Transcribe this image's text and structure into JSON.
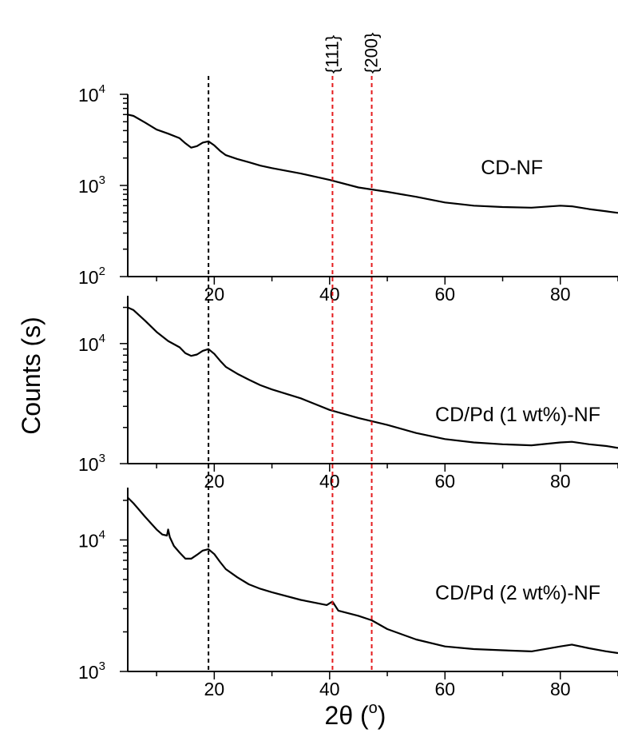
{
  "chart_data": {
    "type": "line",
    "y_axis_title": "Counts (s)",
    "x_axis_title": {
      "base": "2θ (",
      "sup": "o",
      "close": ")"
    },
    "x_range": [
      5,
      90
    ],
    "x_ticks": [
      20,
      40,
      60,
      80
    ],
    "y_scale": "log",
    "reference_lines": [
      {
        "x": 19,
        "color": "#000000",
        "label": ""
      },
      {
        "x": 40.5,
        "color": "#e41a1c",
        "label": "{111}"
      },
      {
        "x": 47.3,
        "color": "#e41a1c",
        "label": "{200}"
      }
    ],
    "panels": [
      {
        "name": "CD-NF",
        "ylim": [
          100,
          10000
        ],
        "y_ticks": [
          {
            "value": 100,
            "base": "10",
            "exp": "2"
          },
          {
            "value": 1000,
            "base": "10",
            "exp": "3"
          },
          {
            "value": 10000,
            "base": "10",
            "exp": "4"
          }
        ],
        "series": [
          {
            "name": "CD-NF",
            "x": [
              5,
              6,
              8,
              10,
              12,
              14,
              15,
              16,
              17,
              18,
              19,
              20,
              21,
              22,
              24,
              26,
              28,
              30,
              35,
              40,
              45,
              50,
              55,
              60,
              65,
              70,
              75,
              80,
              82,
              85,
              88,
              90
            ],
            "y": [
              6000,
              5800,
              4900,
              4100,
              3700,
              3300,
              2900,
              2600,
              2700,
              2950,
              3050,
              2750,
              2400,
              2150,
              1950,
              1800,
              1650,
              1550,
              1350,
              1150,
              950,
              850,
              750,
              650,
              600,
              580,
              570,
              600,
              590,
              550,
              520,
              500
            ]
          }
        ]
      },
      {
        "name": "CD/Pd (1 wt%)-NF",
        "ylim": [
          1000,
          25000
        ],
        "y_ticks": [
          {
            "value": 1000,
            "base": "10",
            "exp": "3"
          },
          {
            "value": 10000,
            "base": "10",
            "exp": "4"
          }
        ],
        "series": [
          {
            "name": "CD/Pd (1 wt%)-NF",
            "x": [
              5,
              6,
              8,
              10,
              12,
              14,
              15,
              16,
              17,
              18,
              19,
              20,
              21,
              22,
              24,
              26,
              28,
              30,
              35,
              40,
              45,
              50,
              55,
              60,
              65,
              70,
              75,
              80,
              82,
              85,
              88,
              90
            ],
            "y": [
              20000,
              19000,
              15500,
              12500,
              10500,
              9300,
              8300,
              7900,
              8100,
              8700,
              9000,
              8200,
              7200,
              6400,
              5600,
              5000,
              4500,
              4150,
              3500,
              2800,
              2400,
              2100,
              1800,
              1600,
              1500,
              1450,
              1420,
              1500,
              1520,
              1450,
              1400,
              1350
            ]
          }
        ]
      },
      {
        "name": "CD/Pd (2 wt%)-NF",
        "ylim": [
          1000,
          25000
        ],
        "y_ticks": [
          {
            "value": 1000,
            "base": "10",
            "exp": "3"
          },
          {
            "value": 10000,
            "base": "10",
            "exp": "4"
          }
        ],
        "series": [
          {
            "name": "CD/Pd (2 wt%)-NF",
            "x": [
              5,
              6,
              8,
              10,
              11,
              11.8,
              12,
              12.3,
              13,
              14,
              15,
              16,
              17,
              18,
              19,
              20,
              21,
              22,
              24,
              26,
              28,
              30,
              35,
              39.5,
              40.5,
              41.5,
              45,
              47.3,
              50,
              55,
              60,
              65,
              70,
              75,
              80,
              82,
              85,
              88,
              90
            ],
            "y": [
              21000,
              19000,
              15000,
              12000,
              11000,
              10800,
              12000,
              10500,
              9000,
              8000,
              7200,
              7200,
              7700,
              8300,
              8500,
              7800,
              6800,
              6000,
              5200,
              4600,
              4250,
              4000,
              3500,
              3200,
              3400,
              2900,
              2650,
              2450,
              2100,
              1750,
              1550,
              1480,
              1450,
              1420,
              1550,
              1600,
              1500,
              1420,
              1380
            ]
          }
        ]
      }
    ]
  }
}
